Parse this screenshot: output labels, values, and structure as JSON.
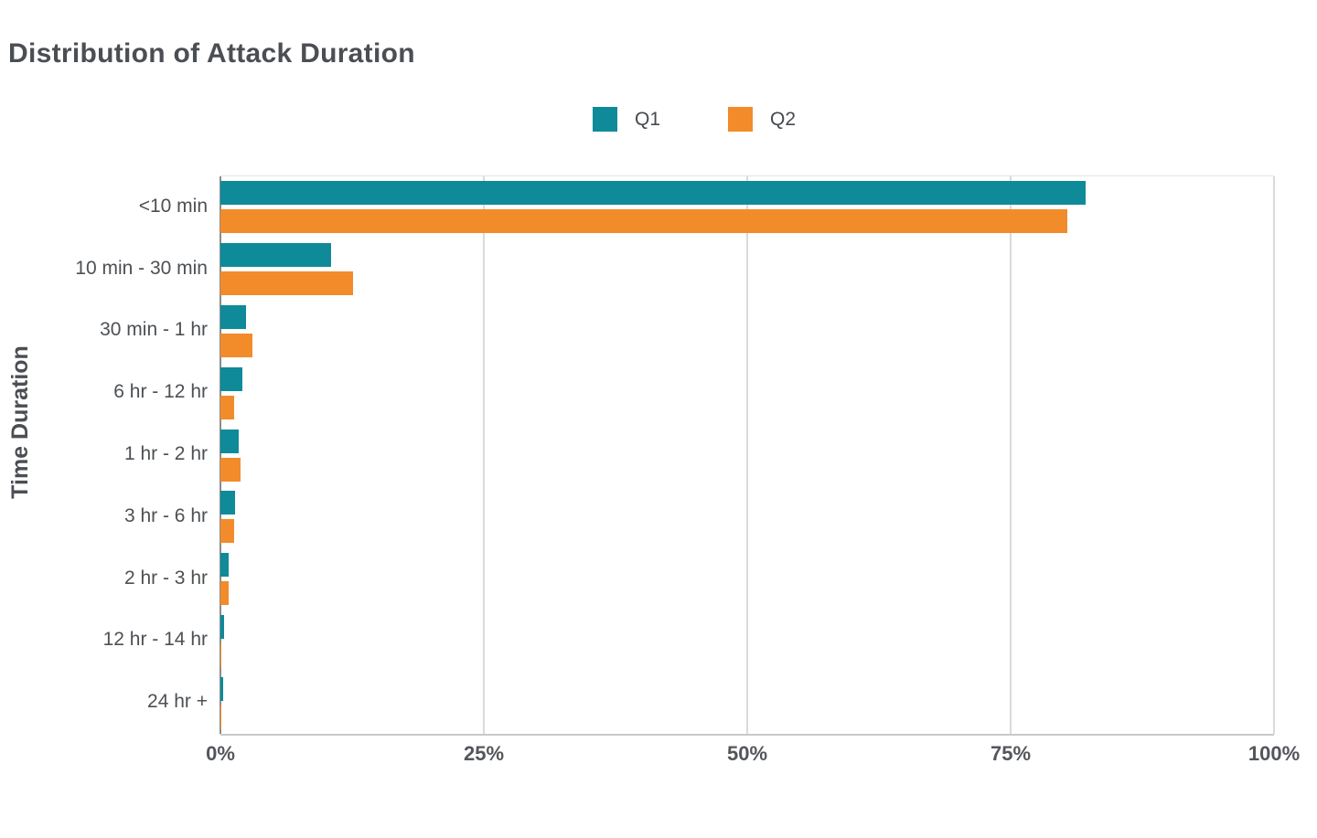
{
  "chart_title": "Distribution of Attack Duration",
  "y_axis_title": "Time Duration",
  "legend": {
    "items": [
      {
        "label": "Q1",
        "color": "#0e8a99"
      },
      {
        "label": "Q2",
        "color": "#f28b2a"
      }
    ]
  },
  "axis": {
    "x_ticks": [
      {
        "label": "0%",
        "value": 0
      },
      {
        "label": "25%",
        "value": 25
      },
      {
        "label": "50%",
        "value": 50
      },
      {
        "label": "75%",
        "value": 75
      },
      {
        "label": "100%",
        "value": 100
      }
    ]
  },
  "colors": {
    "q1_teal": "#0e8a99",
    "q2_orange": "#f28b2a",
    "text": "#4b4e53",
    "gridline": "#dadada",
    "axis_line": "#c9c9c9",
    "zero_line": "#8c8c8c",
    "background": "#ffffff"
  },
  "chart_data": {
    "type": "bar",
    "orientation": "horizontal",
    "title": "Distribution of Attack Duration",
    "xlabel": "",
    "ylabel": "Time Duration",
    "xlim": [
      0,
      100
    ],
    "x_tick_labels": [
      "0%",
      "25%",
      "50%",
      "75%",
      "100%"
    ],
    "unit": "percent",
    "grid": "vertical",
    "legend_position": "top-center",
    "categories": [
      "<10 min",
      "10 min - 30 min",
      "30 min - 1 hr",
      "6 hr - 12 hr",
      "1 hr - 2 hr",
      "3 hr - 6 hr",
      "2 hr - 3 hr",
      "12 hr - 14 hr",
      "24 hr +"
    ],
    "series": [
      {
        "name": "Q1",
        "color": "#0e8a99",
        "values": [
          82.1,
          10.5,
          2.4,
          2.1,
          1.7,
          1.4,
          0.8,
          0.35,
          0.3
        ]
      },
      {
        "name": "Q2",
        "color": "#f28b2a",
        "values": [
          80.4,
          12.6,
          3.0,
          1.3,
          1.9,
          1.3,
          0.75,
          0.08,
          0.05
        ]
      }
    ]
  }
}
